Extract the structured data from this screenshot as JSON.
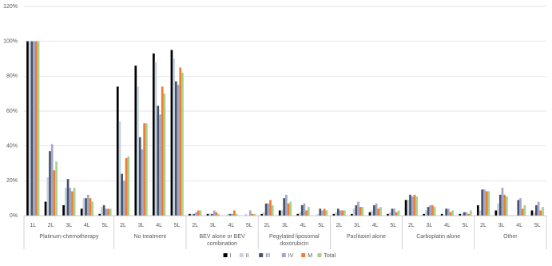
{
  "chart_data": {
    "type": "bar",
    "groups": [
      {
        "label": "Platinum-chemotherapy",
        "categories": [
          "1L",
          "2L",
          "3L",
          "4L",
          "5L"
        ]
      },
      {
        "label": "No treatment",
        "categories": [
          "2L",
          "3L",
          "4L",
          "5L"
        ]
      },
      {
        "label": "BEV alone or BEV combination",
        "categories": [
          "2L",
          "3L",
          "4L",
          "5L"
        ]
      },
      {
        "label": "Pegylated liposomal doxorubicin",
        "categories": [
          "2L",
          "3L",
          "4L",
          "5L"
        ]
      },
      {
        "label": "Paclitaxel alone",
        "categories": [
          "2L",
          "3L",
          "4L",
          "5L"
        ]
      },
      {
        "label": "Carboplatin alone",
        "categories": [
          "2L",
          "3L",
          "4L",
          "5L"
        ]
      },
      {
        "label": "Other",
        "categories": [
          "2L",
          "3L",
          "4L",
          "5L"
        ]
      }
    ],
    "series": [
      {
        "name": "I",
        "color": "#000000",
        "values": [
          100,
          8,
          6,
          4,
          1,
          74,
          86,
          93,
          95,
          1,
          1,
          0,
          0,
          1,
          3,
          1,
          0,
          1,
          1,
          2,
          1,
          9,
          1,
          1,
          1,
          6,
          3,
          0,
          3
        ]
      },
      {
        "name": "II",
        "color": "#c5d3e3",
        "values": [
          100,
          22,
          16,
          10,
          5,
          54,
          74,
          88,
          90,
          1,
          1,
          1,
          1,
          2,
          3,
          2,
          1,
          2,
          4,
          3,
          2,
          9,
          3,
          0,
          1,
          3,
          7,
          0,
          2
        ]
      },
      {
        "name": "III",
        "color": "#44546a",
        "values": [
          100,
          37,
          21,
          10,
          6,
          24,
          45,
          63,
          77,
          1,
          1,
          1,
          0,
          7,
          10,
          6,
          4,
          4,
          6,
          6,
          4,
          12,
          5,
          4,
          2,
          15,
          12,
          9,
          6
        ]
      },
      {
        "name": "IV",
        "color": "#a5a5c8",
        "values": [
          100,
          41,
          16,
          12,
          4,
          20,
          38,
          58,
          75,
          2,
          3,
          1,
          3,
          7,
          12,
          7,
          3,
          3,
          8,
          7,
          4,
          11,
          6,
          4,
          2,
          15,
          16,
          10,
          8
        ]
      },
      {
        "name": "M",
        "color": "#ed7d31",
        "values": [
          100,
          26,
          14,
          10,
          4,
          33,
          53,
          74,
          85,
          3,
          2,
          3,
          1,
          9,
          7,
          3,
          4,
          3,
          5,
          4,
          2,
          12,
          6,
          2,
          1,
          14,
          12,
          4,
          3
        ]
      },
      {
        "name": "Total",
        "color": "#a9d18e",
        "values": [
          100,
          31,
          16,
          8,
          4,
          34,
          53,
          70,
          82,
          3,
          1,
          1,
          1,
          6,
          8,
          5,
          3,
          3,
          5,
          5,
          3,
          11,
          5,
          3,
          3,
          14,
          11,
          6,
          5
        ]
      }
    ],
    "ylim": [
      0,
      120
    ],
    "yticks": [
      {
        "value": 0,
        "label": "0%"
      },
      {
        "value": 20,
        "label": "20%"
      },
      {
        "value": 40,
        "label": "40%"
      },
      {
        "value": 60,
        "label": "60%"
      },
      {
        "value": 80,
        "label": "80%"
      },
      {
        "value": 100,
        "label": "100%"
      },
      {
        "value": 120,
        "label": "120%"
      }
    ],
    "grid": true,
    "legend": "bottom"
  }
}
